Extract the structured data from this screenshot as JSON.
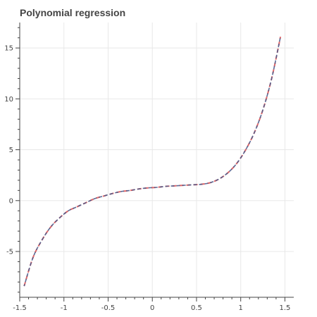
{
  "chart_data": {
    "type": "line",
    "title": "Polynomial regression",
    "xlabel": "",
    "ylabel": "",
    "xlim": [
      -1.5,
      1.6
    ],
    "ylim": [
      -9.5,
      17.5
    ],
    "grid": true,
    "x_ticks": [
      -1.5,
      -1,
      -0.5,
      0,
      0.5,
      1,
      1.5
    ],
    "x_tick_labels": [
      "-1.5",
      "-1",
      "-0.5",
      "0",
      "0.5",
      "1",
      "1.5"
    ],
    "y_ticks": [
      -5,
      0,
      5,
      10,
      15
    ],
    "y_tick_labels": [
      "-5",
      "0",
      "5",
      "10",
      "15"
    ],
    "series": [
      {
        "color": "#d62728",
        "style": "dashed",
        "x": [
          -1.45,
          -1.35,
          -1.25,
          -1.15,
          -1.05,
          -0.95,
          -0.85,
          -0.75,
          -0.65,
          -0.55,
          -0.45,
          -0.35,
          -0.25,
          -0.15,
          -0.05,
          0.05,
          0.15,
          0.25,
          0.35,
          0.45,
          0.55,
          0.65,
          0.75,
          0.85,
          0.95,
          1.05,
          1.15,
          1.25,
          1.35,
          1.45
        ],
        "y": [
          -8.4,
          -5.6,
          -3.9,
          -2.6,
          -1.7,
          -1.0,
          -0.6,
          -0.2,
          0.2,
          0.45,
          0.7,
          0.9,
          1.0,
          1.15,
          1.25,
          1.3,
          1.4,
          1.45,
          1.5,
          1.55,
          1.6,
          1.75,
          2.1,
          2.7,
          3.6,
          4.9,
          6.6,
          8.9,
          12.0,
          16.1
        ]
      },
      {
        "color": "#4a5a8a",
        "style": "dashed",
        "x": [
          -1.45,
          -1.35,
          -1.25,
          -1.15,
          -1.05,
          -0.95,
          -0.85,
          -0.75,
          -0.65,
          -0.55,
          -0.45,
          -0.35,
          -0.25,
          -0.15,
          -0.05,
          0.05,
          0.15,
          0.25,
          0.35,
          0.45,
          0.55,
          0.65,
          0.75,
          0.85,
          0.95,
          1.05,
          1.15,
          1.25,
          1.35,
          1.45
        ],
        "y": [
          -8.4,
          -5.6,
          -3.9,
          -2.6,
          -1.7,
          -1.0,
          -0.6,
          -0.2,
          0.2,
          0.45,
          0.7,
          0.9,
          1.0,
          1.15,
          1.25,
          1.3,
          1.4,
          1.45,
          1.5,
          1.55,
          1.6,
          1.75,
          2.1,
          2.7,
          3.6,
          4.9,
          6.6,
          8.9,
          12.0,
          16.1
        ]
      }
    ]
  }
}
